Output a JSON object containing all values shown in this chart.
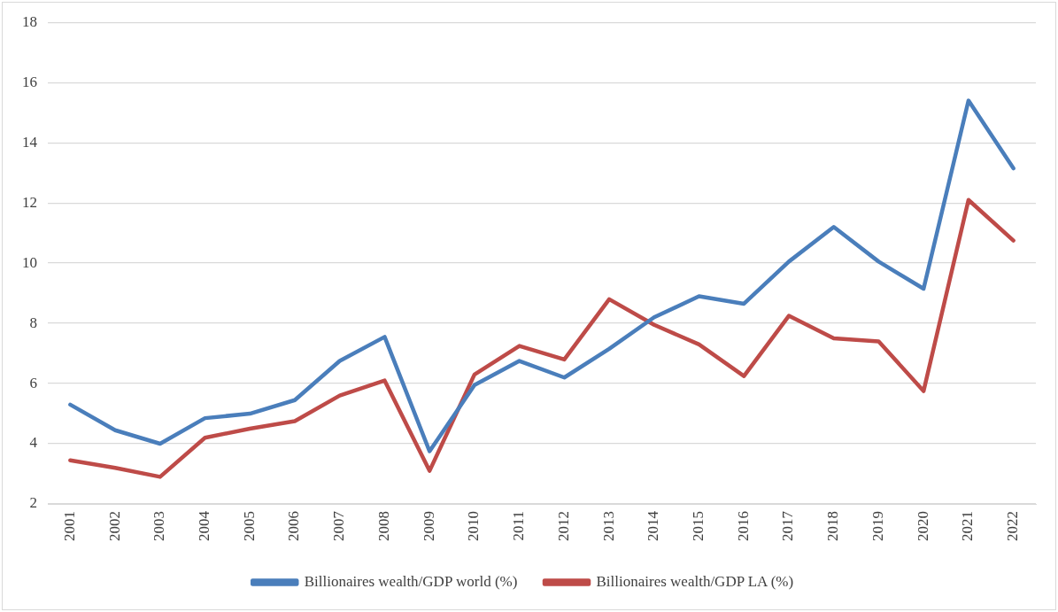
{
  "chart_data": {
    "type": "line",
    "categories": [
      "2001",
      "2002",
      "2003",
      "2004",
      "2005",
      "2006",
      "2007",
      "2008",
      "2009",
      "2010",
      "2011",
      "2012",
      "2013",
      "2014",
      "2015",
      "2016",
      "2017",
      "2018",
      "2019",
      "2020",
      "2021",
      "2022"
    ],
    "series": [
      {
        "name": "Billionaires wealth/GDP world (%)",
        "color": "#4a7ebb",
        "values": [
          5.3,
          4.45,
          4.0,
          4.85,
          5.0,
          5.45,
          6.75,
          7.55,
          3.75,
          5.95,
          6.75,
          6.2,
          7.15,
          8.2,
          8.9,
          8.65,
          10.05,
          11.2,
          10.05,
          9.15,
          15.4,
          13.15
        ]
      },
      {
        "name": "Billionaires wealth/GDP LA (%)",
        "color": "#be4b48",
        "values": [
          3.45,
          3.2,
          2.9,
          4.2,
          4.5,
          4.75,
          5.6,
          6.1,
          3.1,
          6.3,
          7.25,
          6.8,
          8.8,
          7.95,
          7.3,
          6.25,
          8.25,
          7.5,
          7.4,
          5.75,
          12.1,
          10.75
        ]
      }
    ],
    "ylim": [
      2,
      18
    ],
    "yticks": [
      2,
      4,
      6,
      8,
      10,
      12,
      14,
      16,
      18
    ],
    "grid": "y",
    "legend": "bottom",
    "marker": "none",
    "line_style": "solid"
  }
}
